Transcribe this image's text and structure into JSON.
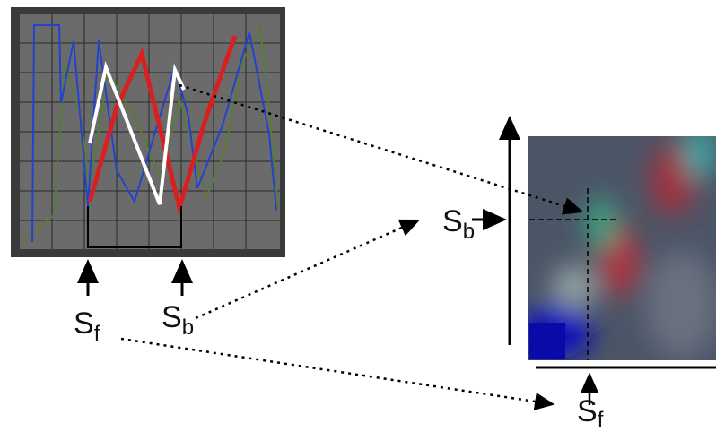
{
  "labels": [
    {
      "letter": "S",
      "subscript": "f"
    },
    {
      "letter": "S",
      "subscript": "b"
    },
    {
      "letter": "S",
      "subscript": "b"
    },
    {
      "letter": "S",
      "subscript": "f"
    }
  ]
}
